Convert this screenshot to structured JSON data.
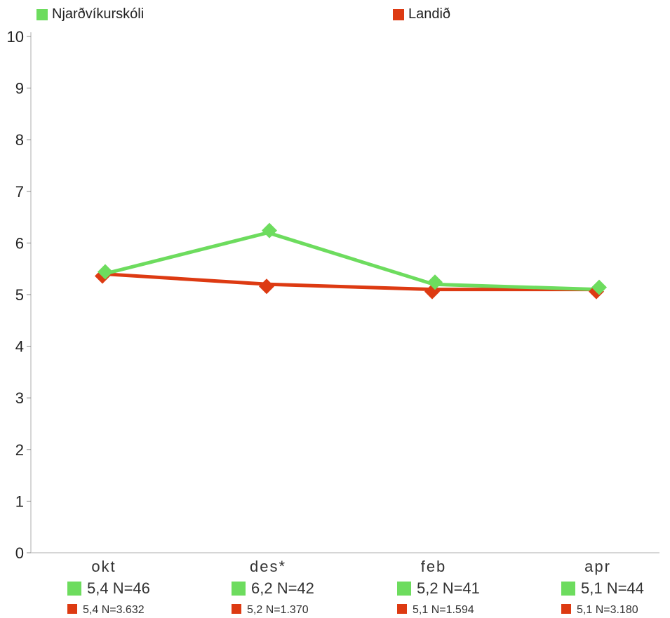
{
  "chart_data": {
    "type": "line",
    "categories": [
      "okt",
      "des*",
      "feb",
      "apr"
    ],
    "ylim": [
      0,
      10
    ],
    "yticks": [
      0,
      1,
      2,
      3,
      4,
      5,
      6,
      7,
      8,
      9,
      10
    ],
    "legend_position": "top",
    "series": [
      {
        "name": "Njarðvíkurskóli",
        "color": "#6ddc5e",
        "values": [
          5.4,
          6.2,
          5.2,
          5.1
        ],
        "labels": [
          "5,4 N=46",
          "6,2 N=42",
          "5,2 N=41",
          "5,1 N=44"
        ]
      },
      {
        "name": "Landið",
        "color": "#dd3a12",
        "values": [
          5.4,
          5.2,
          5.1,
          5.1
        ],
        "labels": [
          "5,4 N=3.632",
          "5,2 N=1.370",
          "5,1 N=1.594",
          "5,1 N=3.180"
        ]
      }
    ]
  }
}
